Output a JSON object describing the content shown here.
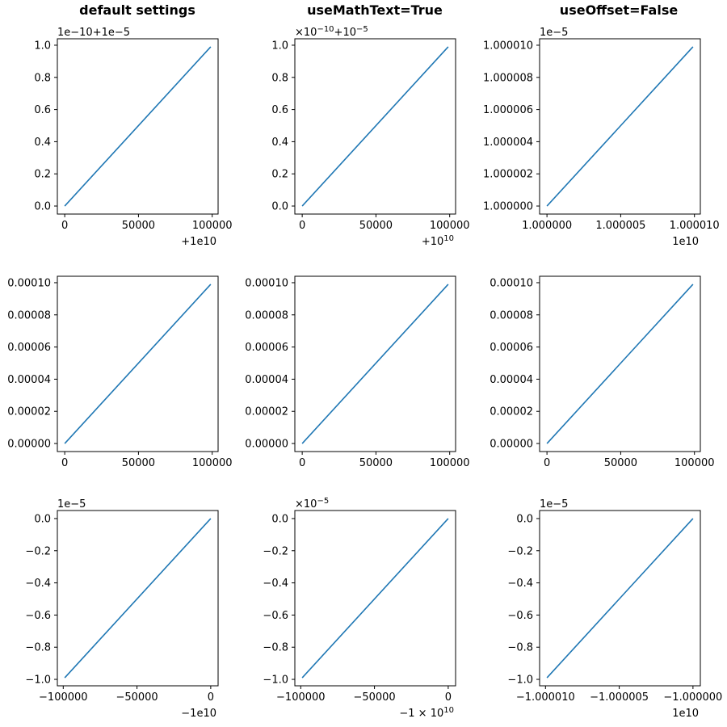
{
  "figure": {
    "column_titles": [
      "default settings",
      "useMathText=True",
      "useOffset=False"
    ]
  },
  "style": {
    "line_color": "#1f77b4"
  },
  "chart_data": [
    {
      "type": "line",
      "row": 0,
      "col": 0,
      "x": [
        0,
        99000
      ],
      "y": [
        0,
        0.99
      ],
      "xlim": [
        -5000,
        104000
      ],
      "ylim": [
        -0.05,
        1.04
      ],
      "xticks": [
        0,
        50000,
        100000
      ],
      "xtick_labels": [
        "0",
        "50000",
        "100000"
      ],
      "yticks": [
        0,
        0.2,
        0.4,
        0.6,
        0.8,
        1.0
      ],
      "ytick_labels": [
        "0.0",
        "0.2",
        "0.4",
        "0.6",
        "0.8",
        "1.0"
      ],
      "y_offset_text": [
        {
          "t": "1e−10+1e−5"
        }
      ],
      "x_offset_text": [
        {
          "t": "+1e10"
        }
      ]
    },
    {
      "type": "line",
      "row": 0,
      "col": 1,
      "x": [
        0,
        99000
      ],
      "y": [
        0,
        0.99
      ],
      "xlim": [
        -5000,
        104000
      ],
      "ylim": [
        -0.05,
        1.04
      ],
      "xticks": [
        0,
        50000,
        100000
      ],
      "xtick_labels": [
        "0",
        "50000",
        "100000"
      ],
      "yticks": [
        0,
        0.2,
        0.4,
        0.6,
        0.8,
        1.0
      ],
      "ytick_labels": [
        "0.0",
        "0.2",
        "0.4",
        "0.6",
        "0.8",
        "1.0"
      ],
      "y_offset_text": [
        {
          "t": "×10"
        },
        {
          "t": "−10",
          "sup": true
        },
        {
          "t": "+10"
        },
        {
          "t": "−5",
          "sup": true
        }
      ],
      "x_offset_text": [
        {
          "t": "+10"
        },
        {
          "t": "10",
          "sup": true
        }
      ]
    },
    {
      "type": "line",
      "row": 0,
      "col": 2,
      "x": [
        1.0,
        1.0000099
      ],
      "y": [
        1.0,
        1.0000099
      ],
      "xlim": [
        0.9999995,
        1.0000104
      ],
      "ylim": [
        0.9999995,
        1.0000104
      ],
      "xticks": [
        1.0,
        1.000005,
        1.00001
      ],
      "xtick_labels": [
        "1.000000",
        "1.000005",
        "1.000010"
      ],
      "yticks": [
        1.0,
        1.000002,
        1.000004,
        1.000006,
        1.000008,
        1.00001
      ],
      "ytick_labels": [
        "1.000000",
        "1.000002",
        "1.000004",
        "1.000006",
        "1.000008",
        "1.000010"
      ],
      "y_offset_text": [
        {
          "t": "1e−5"
        }
      ],
      "x_offset_text": [
        {
          "t": "1e10"
        }
      ]
    },
    {
      "type": "line",
      "row": 1,
      "col": 0,
      "x": [
        0,
        99000
      ],
      "y": [
        0,
        9.9e-05
      ],
      "xlim": [
        -5000,
        104000
      ],
      "ylim": [
        -5e-06,
        0.000104
      ],
      "xticks": [
        0,
        50000,
        100000
      ],
      "xtick_labels": [
        "0",
        "50000",
        "100000"
      ],
      "yticks": [
        0,
        2e-05,
        4e-05,
        6e-05,
        8e-05,
        0.0001
      ],
      "ytick_labels": [
        "0.00000",
        "0.00002",
        "0.00004",
        "0.00006",
        "0.00008",
        "0.00010"
      ],
      "y_offset_text": [],
      "x_offset_text": []
    },
    {
      "type": "line",
      "row": 1,
      "col": 1,
      "x": [
        0,
        99000
      ],
      "y": [
        0,
        9.9e-05
      ],
      "xlim": [
        -5000,
        104000
      ],
      "ylim": [
        -5e-06,
        0.000104
      ],
      "xticks": [
        0,
        50000,
        100000
      ],
      "xtick_labels": [
        "0",
        "50000",
        "100000"
      ],
      "yticks": [
        0,
        2e-05,
        4e-05,
        6e-05,
        8e-05,
        0.0001
      ],
      "ytick_labels": [
        "0.00000",
        "0.00002",
        "0.00004",
        "0.00006",
        "0.00008",
        "0.00010"
      ],
      "y_offset_text": [],
      "x_offset_text": []
    },
    {
      "type": "line",
      "row": 1,
      "col": 2,
      "x": [
        0,
        99000
      ],
      "y": [
        0,
        9.9e-05
      ],
      "xlim": [
        -5000,
        104000
      ],
      "ylim": [
        -5e-06,
        0.000104
      ],
      "xticks": [
        0,
        50000,
        100000
      ],
      "xtick_labels": [
        "0",
        "50000",
        "100000"
      ],
      "yticks": [
        0,
        2e-05,
        4e-05,
        6e-05,
        8e-05,
        0.0001
      ],
      "ytick_labels": [
        "0.00000",
        "0.00002",
        "0.00004",
        "0.00006",
        "0.00008",
        "0.00010"
      ],
      "y_offset_text": [],
      "x_offset_text": []
    },
    {
      "type": "line",
      "row": 2,
      "col": 0,
      "x": [
        -99000,
        0
      ],
      "y": [
        -0.99,
        0
      ],
      "xlim": [
        -104000,
        5000
      ],
      "ylim": [
        -1.04,
        0.05
      ],
      "xticks": [
        -100000,
        -50000,
        0
      ],
      "xtick_labels": [
        "−100000",
        "−50000",
        "0"
      ],
      "yticks": [
        0,
        -0.2,
        -0.4,
        -0.6,
        -0.8,
        -1.0
      ],
      "ytick_labels": [
        "0.0",
        "−0.2",
        "−0.4",
        "−0.6",
        "−0.8",
        "−1.0"
      ],
      "y_offset_text": [
        {
          "t": "1e−5"
        }
      ],
      "x_offset_text": [
        {
          "t": "−1e10"
        }
      ]
    },
    {
      "type": "line",
      "row": 2,
      "col": 1,
      "x": [
        -99000,
        0
      ],
      "y": [
        -0.99,
        0
      ],
      "xlim": [
        -104000,
        5000
      ],
      "ylim": [
        -1.04,
        0.05
      ],
      "xticks": [
        -100000,
        -50000,
        0
      ],
      "xtick_labels": [
        "−100000",
        "−50000",
        "0"
      ],
      "yticks": [
        0,
        -0.2,
        -0.4,
        -0.6,
        -0.8,
        -1.0
      ],
      "ytick_labels": [
        "0.0",
        "−0.2",
        "−0.4",
        "−0.6",
        "−0.8",
        "−1.0"
      ],
      "y_offset_text": [
        {
          "t": "×10"
        },
        {
          "t": "−5",
          "sup": true
        }
      ],
      "x_offset_text": [
        {
          "t": "−1 × 10"
        },
        {
          "t": "10",
          "sup": true
        }
      ]
    },
    {
      "type": "line",
      "row": 2,
      "col": 2,
      "x": [
        -1.0000099,
        -1.0
      ],
      "y": [
        -0.99,
        0
      ],
      "xlim": [
        -1.0000104,
        -0.9999995
      ],
      "ylim": [
        -1.04,
        0.05
      ],
      "xticks": [
        -1.00001,
        -1.000005,
        -1.0
      ],
      "xtick_labels": [
        "−1.000010",
        "−1.000005",
        "−1.000000"
      ],
      "yticks": [
        0,
        -0.2,
        -0.4,
        -0.6,
        -0.8,
        -1.0
      ],
      "ytick_labels": [
        "0.0",
        "−0.2",
        "−0.4",
        "−0.6",
        "−0.8",
        "−1.0"
      ],
      "y_offset_text": [
        {
          "t": "1e−5"
        }
      ],
      "x_offset_text": [
        {
          "t": "1e10"
        }
      ]
    }
  ]
}
